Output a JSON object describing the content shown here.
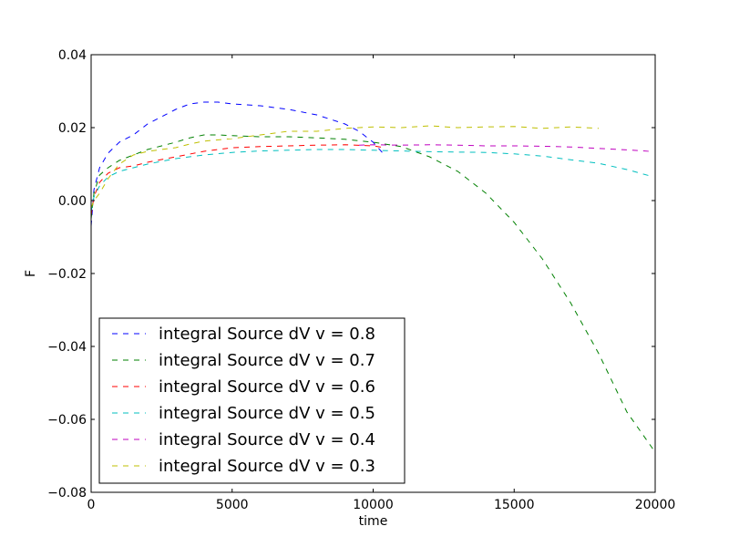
{
  "chart_data": {
    "type": "line",
    "title": "",
    "xlabel": "time",
    "ylabel": "F",
    "xlim": [
      0,
      20000
    ],
    "ylim": [
      -0.08,
      0.04
    ],
    "x_ticks": [
      0,
      5000,
      10000,
      15000,
      20000
    ],
    "x_tick_labels": [
      "0",
      "5000",
      "10000",
      "15000",
      "20000"
    ],
    "y_ticks": [
      0.04,
      0.02,
      0.0,
      -0.02,
      -0.04,
      -0.06,
      -0.08
    ],
    "y_tick_labels": [
      "0.04",
      "0.02",
      "0.00",
      "−0.02",
      "−0.04",
      "−0.06",
      "−0.08"
    ],
    "grid": false,
    "legend_position": "lower-left",
    "line_style": "dashed",
    "series": [
      {
        "name": "integral Source dV v = 0.8",
        "color": "#0000ff",
        "x": [
          0,
          100,
          300,
          600,
          1000,
          1500,
          2000,
          2500,
          3000,
          3500,
          4000,
          4500,
          5000,
          6000,
          7000,
          8000,
          9000,
          9500,
          10000,
          10400
        ],
        "y": [
          -0.007,
          0.003,
          0.009,
          0.013,
          0.016,
          0.018,
          0.021,
          0.023,
          0.025,
          0.0265,
          0.027,
          0.027,
          0.0265,
          0.026,
          0.025,
          0.0235,
          0.021,
          0.019,
          0.016,
          0.0125
        ]
      },
      {
        "name": "integral Source dV v = 0.7",
        "color": "#008000",
        "x": [
          0,
          100,
          300,
          600,
          1000,
          1500,
          2000,
          2500,
          3000,
          3500,
          4000,
          4500,
          5000,
          6000,
          7000,
          8000,
          9000,
          10000,
          11000,
          12000,
          13000,
          14000,
          15000,
          16000,
          17000,
          18000,
          19000,
          20000
        ],
        "y": [
          -0.005,
          0.002,
          0.007,
          0.009,
          0.011,
          0.0125,
          0.014,
          0.015,
          0.016,
          0.0172,
          0.018,
          0.018,
          0.0178,
          0.0175,
          0.0175,
          0.0172,
          0.0168,
          0.016,
          0.0148,
          0.012,
          0.008,
          0.002,
          -0.006,
          -0.016,
          -0.028,
          -0.042,
          -0.058,
          -0.069
        ]
      },
      {
        "name": "integral Source dV v = 0.6",
        "color": "#ff0000",
        "x": [
          0,
          100,
          300,
          600,
          1000,
          1500,
          2000,
          3000,
          4000,
          5000,
          6000,
          7000,
          8000,
          9000,
          10000,
          10400
        ],
        "y": [
          -0.004,
          0.001,
          0.005,
          0.0075,
          0.009,
          0.0095,
          0.0105,
          0.012,
          0.0135,
          0.0145,
          0.0148,
          0.015,
          0.0152,
          0.0153,
          0.015,
          0.0145
        ]
      },
      {
        "name": "integral Source dV v = 0.5",
        "color": "#00bfbf",
        "x": [
          0,
          100,
          300,
          600,
          1000,
          1500,
          2000,
          3000,
          4000,
          5000,
          6000,
          7000,
          8000,
          9000,
          10000,
          11000,
          12000,
          13000,
          14000,
          15000,
          16000,
          17000,
          18000,
          19000,
          19800
        ],
        "y": [
          -0.003,
          0.001,
          0.004,
          0.0065,
          0.008,
          0.009,
          0.01,
          0.0115,
          0.0125,
          0.0132,
          0.0136,
          0.0138,
          0.014,
          0.014,
          0.0138,
          0.0136,
          0.0134,
          0.0133,
          0.0132,
          0.0128,
          0.0122,
          0.0112,
          0.0102,
          0.0085,
          0.0068
        ]
      },
      {
        "name": "integral Source dV v = 0.4",
        "color": "#bf00bf",
        "x": [
          9500,
          10000,
          11000,
          12000,
          13000,
          14000,
          15000,
          16000,
          17000,
          18000,
          19000,
          19800
        ],
        "y": [
          0.0152,
          0.0153,
          0.0152,
          0.0153,
          0.0152,
          0.015,
          0.015,
          0.0149,
          0.0147,
          0.0143,
          0.0139,
          0.0135
        ]
      },
      {
        "name": "integral Source dV v = 0.3",
        "color": "#bfbf00",
        "x": [
          0,
          100,
          300,
          600,
          1000,
          1500,
          2000,
          2500,
          3000,
          3500,
          4000,
          5000,
          6000,
          7000,
          8000,
          9000,
          10000,
          11000,
          12000,
          13000,
          14000,
          15000,
          16000,
          17000,
          18000
        ],
        "y": [
          -0.002,
          0.0,
          0.002,
          0.006,
          0.01,
          0.0125,
          0.0135,
          0.014,
          0.0145,
          0.0155,
          0.0163,
          0.017,
          0.018,
          0.019,
          0.019,
          0.0198,
          0.0202,
          0.02,
          0.0205,
          0.02,
          0.0202,
          0.0203,
          0.0198,
          0.0202,
          0.0198
        ]
      }
    ]
  }
}
